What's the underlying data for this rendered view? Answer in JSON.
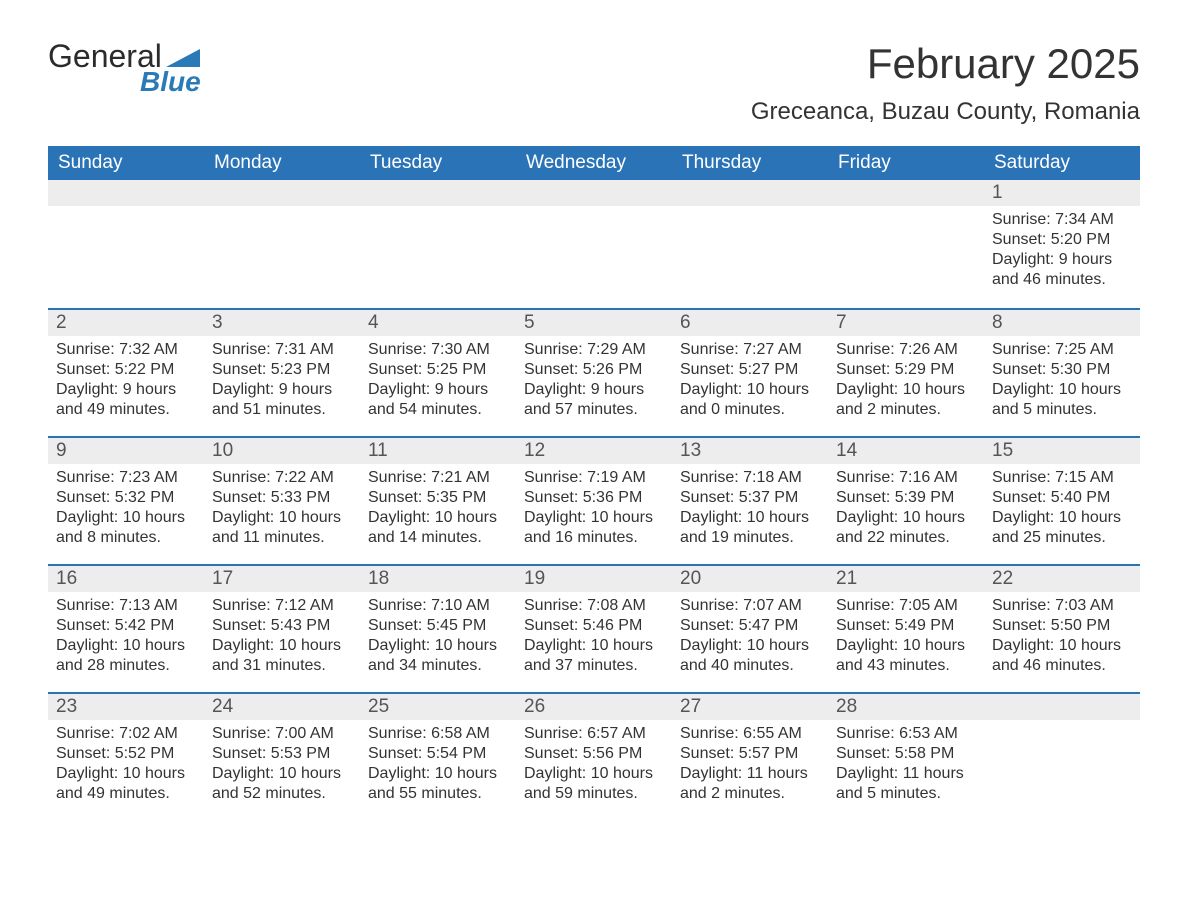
{
  "logo": {
    "word1": "General",
    "word2": "Blue",
    "accent_color": "#2a7ab8",
    "text_color": "#2b2b2b"
  },
  "header": {
    "month_title": "February 2025",
    "location": "Greceanca, Buzau County, Romania"
  },
  "colors": {
    "header_bg": "#2a73b6",
    "header_text": "#ffffff",
    "daynum_bg": "#ededed",
    "row_divider": "#2a73b6",
    "body_text": "#333333",
    "page_bg": "#ffffff"
  },
  "weekdays": [
    "Sunday",
    "Monday",
    "Tuesday",
    "Wednesday",
    "Thursday",
    "Friday",
    "Saturday"
  ],
  "labels": {
    "sunrise": "Sunrise",
    "sunset": "Sunset",
    "daylight": "Daylight"
  },
  "weeks": [
    [
      null,
      null,
      null,
      null,
      null,
      null,
      {
        "day": 1,
        "sunrise": "7:34 AM",
        "sunset": "5:20 PM",
        "daylight": "9 hours and 46 minutes."
      }
    ],
    [
      {
        "day": 2,
        "sunrise": "7:32 AM",
        "sunset": "5:22 PM",
        "daylight": "9 hours and 49 minutes."
      },
      {
        "day": 3,
        "sunrise": "7:31 AM",
        "sunset": "5:23 PM",
        "daylight": "9 hours and 51 minutes."
      },
      {
        "day": 4,
        "sunrise": "7:30 AM",
        "sunset": "5:25 PM",
        "daylight": "9 hours and 54 minutes."
      },
      {
        "day": 5,
        "sunrise": "7:29 AM",
        "sunset": "5:26 PM",
        "daylight": "9 hours and 57 minutes."
      },
      {
        "day": 6,
        "sunrise": "7:27 AM",
        "sunset": "5:27 PM",
        "daylight": "10 hours and 0 minutes."
      },
      {
        "day": 7,
        "sunrise": "7:26 AM",
        "sunset": "5:29 PM",
        "daylight": "10 hours and 2 minutes."
      },
      {
        "day": 8,
        "sunrise": "7:25 AM",
        "sunset": "5:30 PM",
        "daylight": "10 hours and 5 minutes."
      }
    ],
    [
      {
        "day": 9,
        "sunrise": "7:23 AM",
        "sunset": "5:32 PM",
        "daylight": "10 hours and 8 minutes."
      },
      {
        "day": 10,
        "sunrise": "7:22 AM",
        "sunset": "5:33 PM",
        "daylight": "10 hours and 11 minutes."
      },
      {
        "day": 11,
        "sunrise": "7:21 AM",
        "sunset": "5:35 PM",
        "daylight": "10 hours and 14 minutes."
      },
      {
        "day": 12,
        "sunrise": "7:19 AM",
        "sunset": "5:36 PM",
        "daylight": "10 hours and 16 minutes."
      },
      {
        "day": 13,
        "sunrise": "7:18 AM",
        "sunset": "5:37 PM",
        "daylight": "10 hours and 19 minutes."
      },
      {
        "day": 14,
        "sunrise": "7:16 AM",
        "sunset": "5:39 PM",
        "daylight": "10 hours and 22 minutes."
      },
      {
        "day": 15,
        "sunrise": "7:15 AM",
        "sunset": "5:40 PM",
        "daylight": "10 hours and 25 minutes."
      }
    ],
    [
      {
        "day": 16,
        "sunrise": "7:13 AM",
        "sunset": "5:42 PM",
        "daylight": "10 hours and 28 minutes."
      },
      {
        "day": 17,
        "sunrise": "7:12 AM",
        "sunset": "5:43 PM",
        "daylight": "10 hours and 31 minutes."
      },
      {
        "day": 18,
        "sunrise": "7:10 AM",
        "sunset": "5:45 PM",
        "daylight": "10 hours and 34 minutes."
      },
      {
        "day": 19,
        "sunrise": "7:08 AM",
        "sunset": "5:46 PM",
        "daylight": "10 hours and 37 minutes."
      },
      {
        "day": 20,
        "sunrise": "7:07 AM",
        "sunset": "5:47 PM",
        "daylight": "10 hours and 40 minutes."
      },
      {
        "day": 21,
        "sunrise": "7:05 AM",
        "sunset": "5:49 PM",
        "daylight": "10 hours and 43 minutes."
      },
      {
        "day": 22,
        "sunrise": "7:03 AM",
        "sunset": "5:50 PM",
        "daylight": "10 hours and 46 minutes."
      }
    ],
    [
      {
        "day": 23,
        "sunrise": "7:02 AM",
        "sunset": "5:52 PM",
        "daylight": "10 hours and 49 minutes."
      },
      {
        "day": 24,
        "sunrise": "7:00 AM",
        "sunset": "5:53 PM",
        "daylight": "10 hours and 52 minutes."
      },
      {
        "day": 25,
        "sunrise": "6:58 AM",
        "sunset": "5:54 PM",
        "daylight": "10 hours and 55 minutes."
      },
      {
        "day": 26,
        "sunrise": "6:57 AM",
        "sunset": "5:56 PM",
        "daylight": "10 hours and 59 minutes."
      },
      {
        "day": 27,
        "sunrise": "6:55 AM",
        "sunset": "5:57 PM",
        "daylight": "11 hours and 2 minutes."
      },
      {
        "day": 28,
        "sunrise": "6:53 AM",
        "sunset": "5:58 PM",
        "daylight": "11 hours and 5 minutes."
      },
      null
    ]
  ]
}
